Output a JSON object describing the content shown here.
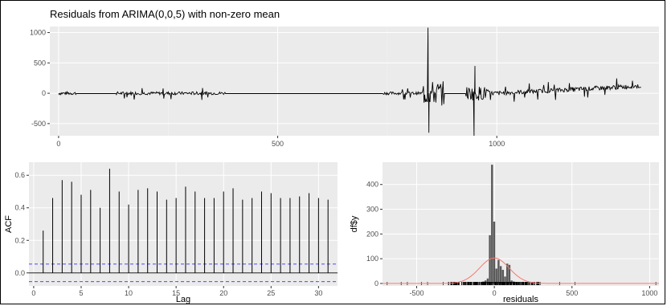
{
  "chart_data": [
    {
      "type": "line",
      "title": "Residuals from ARIMA(0,0,5) with non-zero mean",
      "xlabel": "",
      "ylabel": "",
      "xlim": [
        -20,
        1370
      ],
      "ylim": [
        -700,
        1100
      ],
      "x_ticks": [
        0,
        500,
        1000
      ],
      "y_ticks": [
        -500,
        0,
        500,
        1000
      ],
      "segments": [
        {
          "x_start": 0,
          "x_end": 40,
          "amplitude": 60
        },
        {
          "x_start": 130,
          "x_end": 380,
          "amplitude": 55
        },
        {
          "x_start": 740,
          "x_end": 830,
          "amplitude": 50
        },
        {
          "x_start": 830,
          "x_end": 880,
          "amplitude": 450
        },
        {
          "x_start": 930,
          "x_end": 980,
          "amplitude": 260
        },
        {
          "x_start": 980,
          "x_end": 1330,
          "amplitude": 80
        }
      ],
      "spikes": [
        {
          "x": 843,
          "y": 1080
        },
        {
          "x": 845,
          "y": -650
        },
        {
          "x": 948,
          "y": -700
        },
        {
          "x": 950,
          "y": 450
        }
      ],
      "flat_level": -5,
      "grid": true
    },
    {
      "type": "bar",
      "xlabel": "Lag",
      "ylabel": "ACF",
      "xlim": [
        -0.5,
        32
      ],
      "ylim": [
        -0.08,
        0.68
      ],
      "x_ticks": [
        0,
        5,
        10,
        15,
        20,
        25,
        30
      ],
      "y_ticks": [
        0.0,
        0.2,
        0.4,
        0.6
      ],
      "lags": [
        1,
        2,
        3,
        4,
        5,
        6,
        7,
        8,
        9,
        10,
        11,
        12,
        13,
        14,
        15,
        16,
        17,
        18,
        19,
        20,
        21,
        22,
        23,
        24,
        25,
        26,
        27,
        28,
        29,
        30,
        31
      ],
      "values": [
        0.26,
        0.46,
        0.57,
        0.56,
        0.48,
        0.51,
        0.4,
        0.64,
        0.5,
        0.42,
        0.51,
        0.52,
        0.5,
        0.45,
        0.46,
        0.53,
        0.5,
        0.46,
        0.46,
        0.5,
        0.52,
        0.45,
        0.46,
        0.5,
        0.49,
        0.46,
        0.46,
        0.47,
        0.49,
        0.46,
        0.45
      ],
      "ci_bound": 0.054,
      "grid": true
    },
    {
      "type": "bar",
      "xlabel": "residuals",
      "ylabel": "df$y",
      "xlim": [
        -720,
        1060
      ],
      "ylim": [
        -10,
        490
      ],
      "x_ticks": [
        -500,
        0,
        500,
        1000
      ],
      "y_ticks": [
        0,
        100,
        200,
        300,
        400
      ],
      "bin_width": 14,
      "bins": [
        {
          "x": -84,
          "count": 4
        },
        {
          "x": -70,
          "count": 8
        },
        {
          "x": -56,
          "count": 12
        },
        {
          "x": -42,
          "count": 20
        },
        {
          "x": -28,
          "count": 195
        },
        {
          "x": -14,
          "count": 480
        },
        {
          "x": 0,
          "count": 250
        },
        {
          "x": 14,
          "count": 60
        },
        {
          "x": 28,
          "count": 95
        },
        {
          "x": 42,
          "count": 70
        },
        {
          "x": 56,
          "count": 55
        },
        {
          "x": 70,
          "count": 28
        },
        {
          "x": 84,
          "count": 80
        },
        {
          "x": 98,
          "count": 75
        },
        {
          "x": 112,
          "count": 12
        },
        {
          "x": 126,
          "count": 8
        },
        {
          "x": 140,
          "count": 5
        }
      ],
      "density_peak": 103,
      "density_sd": 95,
      "density_color": "#f8766d",
      "grid": true
    }
  ]
}
